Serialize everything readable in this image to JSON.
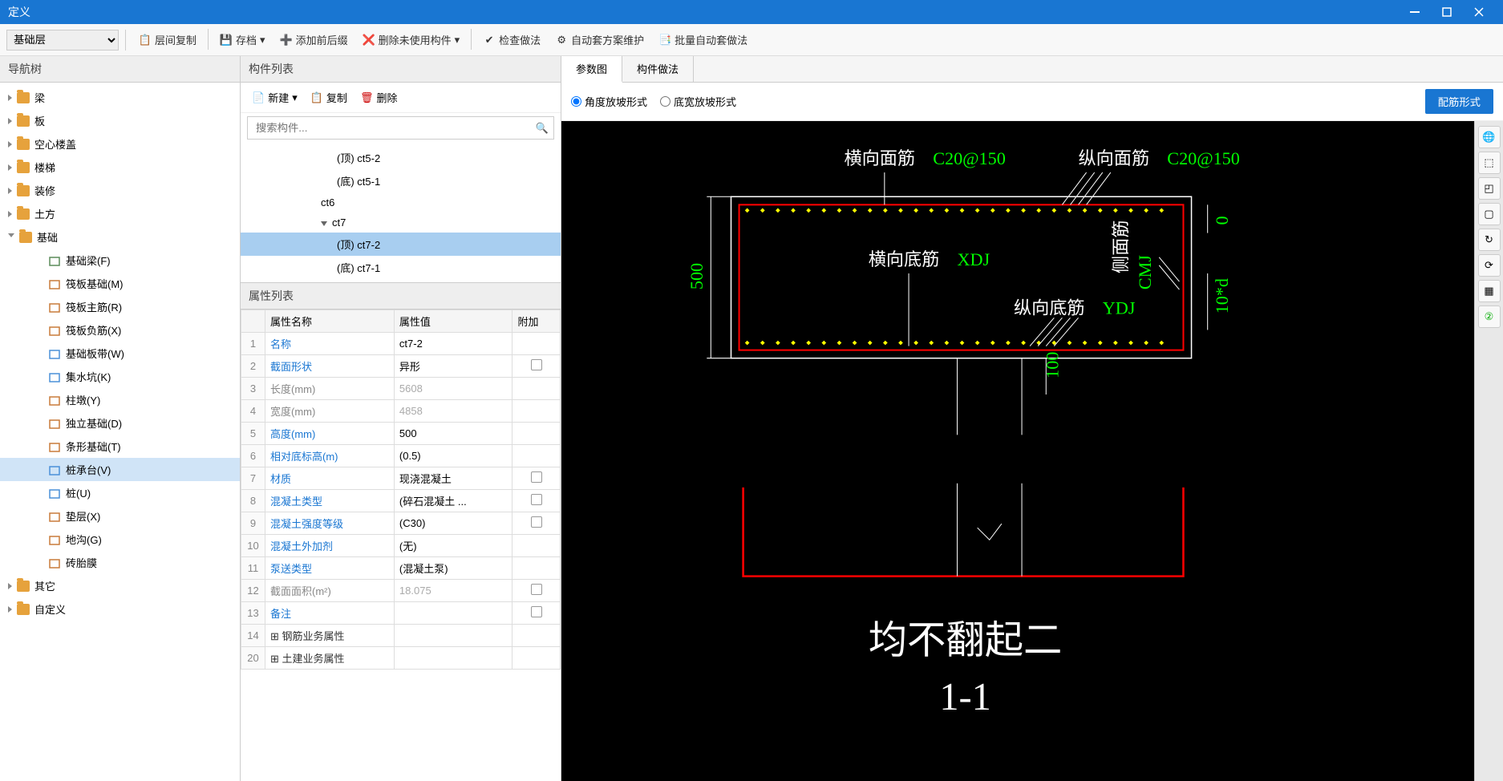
{
  "window": {
    "title": "定义"
  },
  "toolbar": {
    "layer_selected": "基础层",
    "buttons": [
      {
        "label": "层间复制",
        "icon": "copy-layer"
      },
      {
        "label": "存档",
        "icon": "archive"
      },
      {
        "label": "添加前后缀",
        "icon": "prefix"
      },
      {
        "label": "删除未使用构件",
        "icon": "delete-unused"
      },
      {
        "label": "检查做法",
        "icon": "check"
      },
      {
        "label": "自动套方案维护",
        "icon": "auto-plan"
      },
      {
        "label": "批量自动套做法",
        "icon": "batch"
      }
    ]
  },
  "nav": {
    "title": "导航树",
    "items": [
      {
        "label": "梁",
        "type": "folder"
      },
      {
        "label": "板",
        "type": "folder"
      },
      {
        "label": "空心楼盖",
        "type": "folder"
      },
      {
        "label": "楼梯",
        "type": "folder"
      },
      {
        "label": "装修",
        "type": "folder"
      },
      {
        "label": "土方",
        "type": "folder"
      },
      {
        "label": "基础",
        "type": "folder",
        "expanded": true,
        "children": [
          {
            "label": "基础梁(F)",
            "color": "#5b8c5a"
          },
          {
            "label": "筏板基础(M)",
            "color": "#c97b3a"
          },
          {
            "label": "筏板主筋(R)",
            "color": "#c97b3a"
          },
          {
            "label": "筏板负筋(X)",
            "color": "#c97b3a"
          },
          {
            "label": "基础板带(W)",
            "color": "#4a90d9"
          },
          {
            "label": "集水坑(K)",
            "color": "#4a90d9"
          },
          {
            "label": "柱墩(Y)",
            "color": "#c97b3a"
          },
          {
            "label": "独立基础(D)",
            "color": "#c97b3a"
          },
          {
            "label": "条形基础(T)",
            "color": "#c97b3a"
          },
          {
            "label": "桩承台(V)",
            "color": "#4a90d9",
            "selected": true
          },
          {
            "label": "桩(U)",
            "color": "#4a90d9"
          },
          {
            "label": "垫层(X)",
            "color": "#c97b3a"
          },
          {
            "label": "地沟(G)",
            "color": "#c97b3a"
          },
          {
            "label": "砖胎膜",
            "color": "#c97b3a"
          }
        ]
      },
      {
        "label": "其它",
        "type": "folder"
      },
      {
        "label": "自定义",
        "type": "folder"
      }
    ]
  },
  "complist": {
    "title": "构件列表",
    "new_label": "新建",
    "copy_label": "复制",
    "delete_label": "删除",
    "search_placeholder": "搜索构件...",
    "items": [
      {
        "label": "(顶) ct5-2",
        "indent": 2
      },
      {
        "label": "(底) ct5-1",
        "indent": 2
      },
      {
        "label": "ct6",
        "indent": 1
      },
      {
        "label": "ct7",
        "indent": 1,
        "expanded": true
      },
      {
        "label": "(顶) ct7-2",
        "indent": 2,
        "selected": true
      },
      {
        "label": "(底) ct7-1",
        "indent": 2
      }
    ]
  },
  "props": {
    "title": "属性列表",
    "headers": {
      "name": "属性名称",
      "value": "属性值",
      "extra": "附加"
    },
    "rows": [
      {
        "n": 1,
        "name": "名称",
        "value": "ct7-2",
        "link": true
      },
      {
        "n": 2,
        "name": "截面形状",
        "value": "异形",
        "link": true,
        "check": true
      },
      {
        "n": 3,
        "name": "长度(mm)",
        "value": "5608",
        "link": true,
        "gray": true
      },
      {
        "n": 4,
        "name": "宽度(mm)",
        "value": "4858",
        "link": true,
        "gray": true
      },
      {
        "n": 5,
        "name": "高度(mm)",
        "value": "500",
        "link": true
      },
      {
        "n": 6,
        "name": "相对底标高(m)",
        "value": "(0.5)",
        "link": true
      },
      {
        "n": 7,
        "name": "材质",
        "value": "现浇混凝土",
        "link": true,
        "check": true
      },
      {
        "n": 8,
        "name": "混凝土类型",
        "value": "(碎石混凝土 ...",
        "link": true,
        "check": true
      },
      {
        "n": 9,
        "name": "混凝土强度等级",
        "value": "(C30)",
        "link": true,
        "check": true
      },
      {
        "n": 10,
        "name": "混凝土外加剂",
        "value": "(无)",
        "link": true
      },
      {
        "n": 11,
        "name": "泵送类型",
        "value": "(混凝土泵)",
        "link": true
      },
      {
        "n": 12,
        "name": "截面面积(m²)",
        "value": "18.075",
        "link": true,
        "gray": true,
        "check": true
      },
      {
        "n": 13,
        "name": "备注",
        "value": "",
        "link": true,
        "check": true
      },
      {
        "n": 14,
        "name": "钢筋业务属性",
        "value": "",
        "expand": true
      },
      {
        "n": 20,
        "name": "土建业务属性",
        "value": "",
        "expand": true
      }
    ]
  },
  "drawing": {
    "tabs": [
      {
        "label": "参数图",
        "active": true
      },
      {
        "label": "构件做法",
        "active": false
      }
    ],
    "radio1": "角度放坡形式",
    "radio2": "底宽放坡形式",
    "config_btn": "配筋形式",
    "labels": {
      "hxmj": "横向面筋",
      "hxmj_val": "C20@150",
      "zxmj": "纵向面筋",
      "zxmj_val": "C20@150",
      "hxdj": "横向底筋",
      "hxdj_val": "XDJ",
      "zxdj": "纵向底筋",
      "zxdj_val": "YDJ",
      "cmj": "侧面筋",
      "cmj_val": "CMJ",
      "dim_h": "500",
      "dim_h2": "100",
      "dim_r1": "0",
      "dim_r2": "10*d",
      "big1": "均不翻起二",
      "big2": "1-1"
    },
    "colors": {
      "bg": "#000000",
      "outline": "#ffffff",
      "rebar_line": "#ff0000",
      "rebar_dot": "#ffff00",
      "text_green": "#00ff00",
      "text_white": "#ffffff"
    }
  }
}
